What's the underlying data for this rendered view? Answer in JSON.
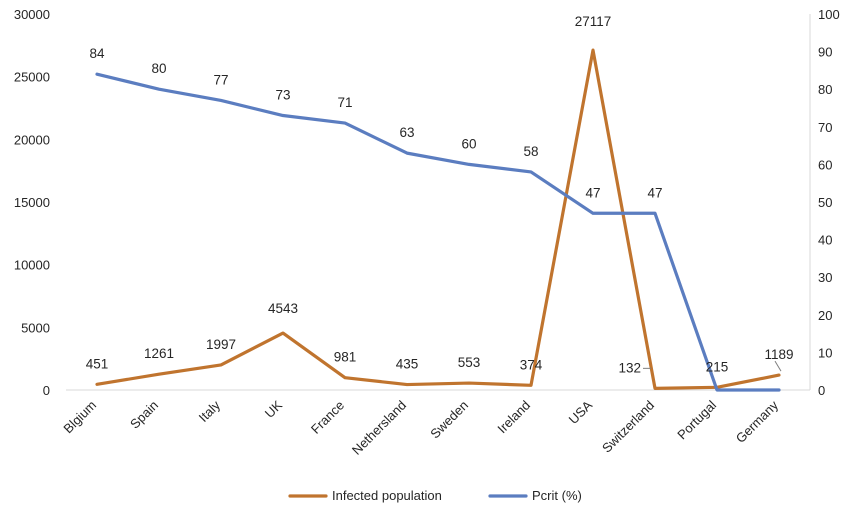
{
  "chart_data": {
    "type": "line",
    "categories": [
      "Blgium",
      "Spain",
      "Italy",
      "UK",
      "France",
      "Nethersland",
      "Sweden",
      "Ireland",
      "USA",
      "Switzerland",
      "Portugal",
      "Germany"
    ],
    "series": [
      {
        "name": "Infected population",
        "axis": "left",
        "color": "#C0742E",
        "values": [
          451,
          1261,
          1997,
          4543,
          981,
          435,
          553,
          374,
          27117,
          132,
          215,
          1189
        ],
        "labels": [
          "451",
          "1261",
          "1997",
          "4543",
          "981",
          "435",
          "553",
          "374",
          "27117",
          "132",
          "215",
          "1189"
        ]
      },
      {
        "name": "Pcrit (%)",
        "axis": "right",
        "color": "#5B7DC0",
        "values": [
          84,
          80,
          77,
          73,
          71,
          63,
          60,
          58,
          47,
          47,
          0,
          0
        ],
        "labels": [
          "84",
          "80",
          "77",
          "73",
          "71",
          "63",
          "60",
          "58",
          "47",
          "47",
          "",
          ""
        ]
      }
    ],
    "y_left": {
      "min": 0,
      "max": 30000,
      "ticks": [
        0,
        5000,
        10000,
        15000,
        20000,
        25000,
        30000
      ],
      "tick_labels": [
        "0",
        "5000",
        "10000",
        "15000",
        "20000",
        "25000",
        "30000"
      ]
    },
    "y_right": {
      "min": 0,
      "max": 100,
      "ticks": [
        0,
        10,
        20,
        30,
        40,
        50,
        60,
        70,
        80,
        90,
        100
      ],
      "tick_labels": [
        "0",
        "10",
        "20",
        "30",
        "40",
        "50",
        "60",
        "70",
        "80",
        "90",
        "100"
      ]
    },
    "grid": false,
    "legend": "bottom",
    "title": "",
    "xlabel": "",
    "ylabel": ""
  }
}
